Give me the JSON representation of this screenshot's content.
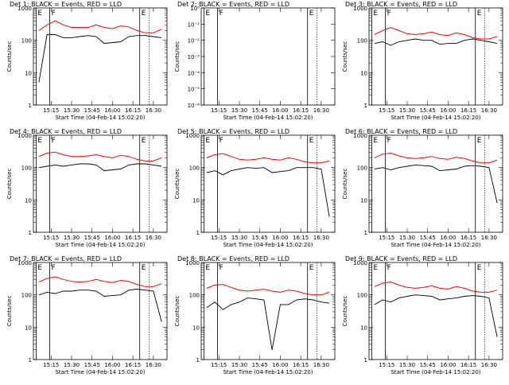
{
  "ylabel": "Counts/sec",
  "xlabel": "Start Time (04-Feb-14 15:02:20)",
  "xticks": [
    "15:15",
    "15:30",
    "15:45",
    "16:00",
    "16:15",
    "16:30"
  ],
  "yticks_log": [
    "1",
    "10",
    "100",
    "1000"
  ],
  "yticks_small": [
    "10⁻⁶",
    "10⁻⁵",
    "10⁻⁴",
    "10⁻³",
    "10⁻²",
    "10⁻¹",
    "10⁰"
  ],
  "colors": {
    "events": "#000000",
    "lld": "#ff0000",
    "axis": "#000000"
  },
  "chart_data": [
    {
      "type": "line",
      "title": "Det 1: BLACK = Events, RED = LLD",
      "scale": "log",
      "ylim": [
        1,
        1000
      ],
      "x": [
        "15:06",
        "15:12",
        "15:18",
        "15:24",
        "15:30",
        "15:36",
        "15:42",
        "15:48",
        "15:54",
        "16:00",
        "16:06",
        "16:12",
        "16:18",
        "16:24",
        "16:30",
        "16:36"
      ],
      "events": [
        5,
        150,
        150,
        120,
        120,
        130,
        140,
        130,
        80,
        85,
        90,
        130,
        140,
        140,
        130,
        120
      ],
      "lld": [
        200,
        300,
        400,
        300,
        250,
        250,
        250,
        300,
        250,
        230,
        280,
        260,
        200,
        170,
        170,
        220
      ],
      "markers": [
        {
          "label": "E",
          "x": "15:04"
        },
        {
          "label": "F",
          "x": "15:14"
        },
        {
          "label": "E",
          "x": "16:20"
        }
      ]
    },
    {
      "type": "line",
      "title": "Det 2: BLACK = Events, RED = LLD",
      "scale": "small",
      "ylim": [
        1e-06,
        1
      ],
      "x": [
        "15:06",
        "16:36"
      ],
      "events": [],
      "lld": [],
      "markers": [
        {
          "label": "E",
          "x": "15:04"
        },
        {
          "label": "F",
          "x": "15:14"
        },
        {
          "label": "E",
          "x": "16:20"
        }
      ]
    },
    {
      "type": "line",
      "title": "Det 3: BLACK = Events, RED = LLD",
      "scale": "log",
      "ylim": [
        1,
        1000
      ],
      "x": [
        "15:06",
        "15:12",
        "15:18",
        "15:24",
        "15:30",
        "15:36",
        "15:42",
        "15:48",
        "15:54",
        "16:00",
        "16:06",
        "16:12",
        "16:18",
        "16:24",
        "16:30",
        "16:36"
      ],
      "events": [
        80,
        90,
        70,
        90,
        100,
        110,
        100,
        100,
        75,
        80,
        80,
        100,
        110,
        100,
        90,
        80
      ],
      "lld": [
        150,
        200,
        250,
        200,
        160,
        150,
        160,
        180,
        150,
        140,
        170,
        150,
        120,
        110,
        110,
        130
      ],
      "markers": [
        {
          "label": "E",
          "x": "15:04"
        },
        {
          "label": "F",
          "x": "15:14"
        },
        {
          "label": "E",
          "x": "16:20"
        }
      ]
    },
    {
      "type": "line",
      "title": "Det 4: BLACK = Events, RED = LLD",
      "scale": "log",
      "ylim": [
        1,
        1000
      ],
      "x": [
        "15:06",
        "15:12",
        "15:18",
        "15:24",
        "15:30",
        "15:36",
        "15:42",
        "15:48",
        "15:54",
        "16:00",
        "16:06",
        "16:12",
        "16:18",
        "16:24",
        "16:30",
        "16:36"
      ],
      "events": [
        100,
        110,
        120,
        110,
        120,
        130,
        130,
        120,
        80,
        85,
        90,
        120,
        130,
        130,
        120,
        110
      ],
      "lld": [
        220,
        280,
        300,
        250,
        220,
        220,
        230,
        250,
        220,
        200,
        240,
        220,
        180,
        160,
        160,
        200
      ],
      "markers": [
        {
          "label": "E",
          "x": "15:04"
        },
        {
          "label": "F",
          "x": "15:14"
        },
        {
          "label": "E",
          "x": "16:20"
        }
      ]
    },
    {
      "type": "line",
      "title": "Det 5: BLACK = Events, RED = LLD",
      "scale": "log",
      "ylim": [
        1,
        1000
      ],
      "x": [
        "15:06",
        "15:12",
        "15:18",
        "15:24",
        "15:30",
        "15:36",
        "15:42",
        "15:48",
        "15:54",
        "16:00",
        "16:06",
        "16:12",
        "16:18",
        "16:24",
        "16:30",
        "16:36"
      ],
      "events": [
        70,
        80,
        60,
        80,
        90,
        100,
        95,
        100,
        70,
        75,
        80,
        100,
        100,
        100,
        90,
        3
      ],
      "lld": [
        200,
        250,
        270,
        220,
        180,
        170,
        180,
        200,
        180,
        170,
        200,
        180,
        150,
        140,
        140,
        160
      ],
      "markers": [
        {
          "label": "E",
          "x": "15:04"
        },
        {
          "label": "F",
          "x": "15:14"
        },
        {
          "label": "E",
          "x": "16:20"
        }
      ]
    },
    {
      "type": "line",
      "title": "Det 6: BLACK = Events, RED = LLD",
      "scale": "log",
      "ylim": [
        1,
        1000
      ],
      "x": [
        "15:06",
        "15:12",
        "15:18",
        "15:24",
        "15:30",
        "15:36",
        "15:42",
        "15:48",
        "15:54",
        "16:00",
        "16:06",
        "16:12",
        "16:18",
        "16:24",
        "16:30",
        "16:36"
      ],
      "events": [
        90,
        100,
        85,
        100,
        110,
        120,
        115,
        110,
        80,
        85,
        90,
        110,
        115,
        110,
        100,
        8
      ],
      "lld": [
        200,
        260,
        280,
        230,
        200,
        190,
        200,
        220,
        190,
        180,
        210,
        190,
        160,
        140,
        140,
        170
      ],
      "markers": [
        {
          "label": "E",
          "x": "15:04"
        },
        {
          "label": "F",
          "x": "15:14"
        },
        {
          "label": "E",
          "x": "16:20"
        }
      ]
    },
    {
      "type": "line",
      "title": "Det 7: BLACK = Events, RED = LLD",
      "scale": "log",
      "ylim": [
        1,
        1000
      ],
      "x": [
        "15:06",
        "15:12",
        "15:18",
        "15:24",
        "15:30",
        "15:36",
        "15:42",
        "15:48",
        "15:54",
        "16:00",
        "16:06",
        "16:12",
        "16:18",
        "16:24",
        "16:30",
        "16:36"
      ],
      "events": [
        100,
        120,
        110,
        130,
        130,
        140,
        140,
        130,
        90,
        95,
        100,
        140,
        150,
        140,
        130,
        15
      ],
      "lld": [
        250,
        320,
        360,
        300,
        260,
        250,
        260,
        300,
        260,
        240,
        280,
        260,
        210,
        180,
        180,
        220
      ],
      "markers": [
        {
          "label": "E",
          "x": "15:04"
        },
        {
          "label": "F",
          "x": "15:14"
        },
        {
          "label": "E",
          "x": "16:20"
        }
      ]
    },
    {
      "type": "line",
      "title": "Det 8: BLACK = Events, RED = LLD",
      "scale": "log",
      "ylim": [
        1,
        1000
      ],
      "x": [
        "15:06",
        "15:12",
        "15:18",
        "15:24",
        "15:30",
        "15:36",
        "15:42",
        "15:48",
        "15:54",
        "16:00",
        "16:06",
        "16:12",
        "16:18",
        "16:24",
        "16:30",
        "16:36"
      ],
      "events": [
        40,
        60,
        35,
        50,
        60,
        80,
        75,
        70,
        2,
        50,
        50,
        70,
        75,
        70,
        60,
        55
      ],
      "lld": [
        160,
        200,
        210,
        170,
        140,
        130,
        140,
        150,
        130,
        120,
        140,
        130,
        110,
        100,
        100,
        120
      ],
      "markers": [
        {
          "label": "E",
          "x": "15:04"
        },
        {
          "label": "F",
          "x": "15:14"
        },
        {
          "label": "E",
          "x": "16:20"
        }
      ]
    },
    {
      "type": "line",
      "title": "Det 9: BLACK = Events, RED = LLD",
      "scale": "log",
      "ylim": [
        1,
        1000
      ],
      "x": [
        "15:06",
        "15:12",
        "15:18",
        "15:24",
        "15:30",
        "15:36",
        "15:42",
        "15:48",
        "15:54",
        "16:00",
        "16:06",
        "16:12",
        "16:18",
        "16:24",
        "16:30",
        "16:36"
      ],
      "events": [
        50,
        70,
        60,
        80,
        90,
        100,
        95,
        90,
        70,
        75,
        80,
        90,
        95,
        90,
        80,
        5
      ],
      "lld": [
        180,
        230,
        250,
        200,
        170,
        160,
        170,
        190,
        160,
        150,
        180,
        160,
        130,
        120,
        120,
        140
      ],
      "markers": [
        {
          "label": "E",
          "x": "15:04"
        },
        {
          "label": "F",
          "x": "15:14"
        },
        {
          "label": "E",
          "x": "16:20"
        }
      ]
    }
  ]
}
